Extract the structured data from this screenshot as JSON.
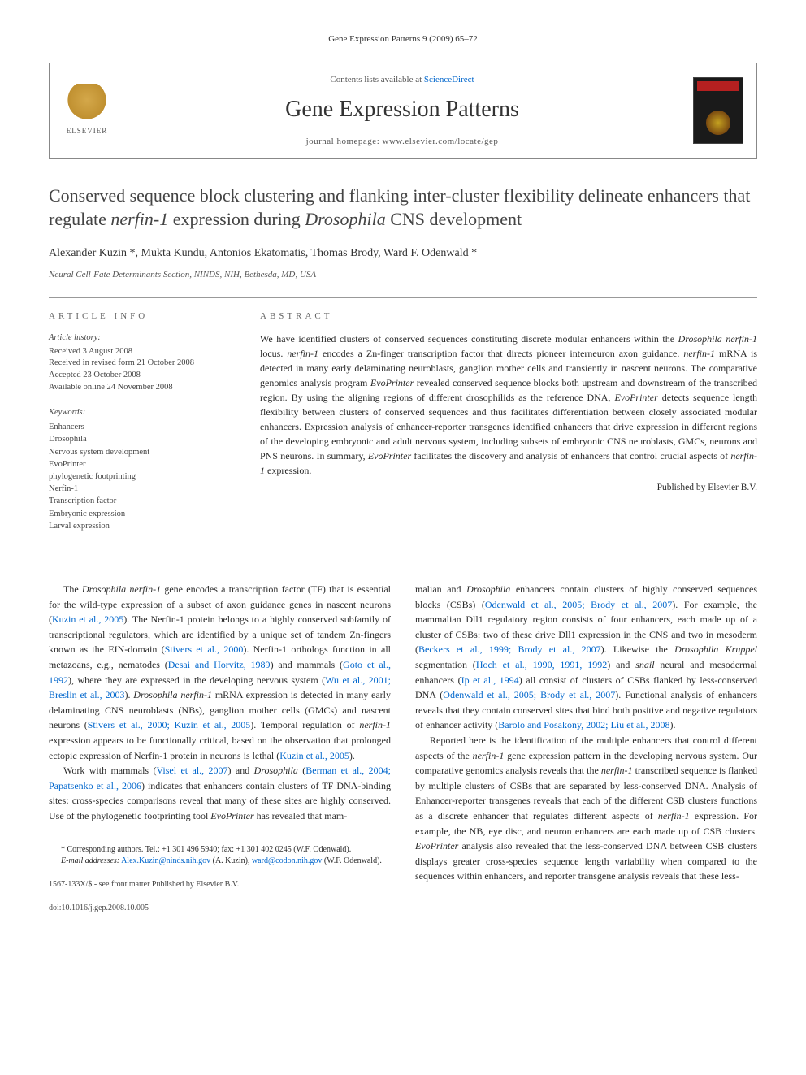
{
  "journal_ref": "Gene Expression Patterns 9 (2009) 65–72",
  "header": {
    "contents_text": "Contents lists available at ",
    "contents_link": "ScienceDirect",
    "journal_name": "Gene Expression Patterns",
    "homepage_text": "journal homepage: www.elsevier.com/locate/gep",
    "elsevier_label": "ELSEVIER"
  },
  "title_html": "Conserved sequence block clustering and flanking inter-cluster flexibility delineate enhancers that regulate <em>nerfin-1</em> expression during <em>Drosophila</em> CNS development",
  "authors": "Alexander Kuzin *, Mukta Kundu, Antonios Ekatomatis, Thomas Brody, Ward F. Odenwald *",
  "affiliation": "Neural Cell-Fate Determinants Section, NINDS, NIH, Bethesda, MD, USA",
  "info": {
    "label": "ARTICLE INFO",
    "history_label": "Article history:",
    "history": [
      "Received 3 August 2008",
      "Received in revised form 21 October 2008",
      "Accepted 23 October 2008",
      "Available online 24 November 2008"
    ],
    "keywords_label": "Keywords:",
    "keywords": [
      "Enhancers",
      "Drosophila",
      "Nervous system development",
      "EvoPrinter",
      "phylogenetic footprinting",
      "Nerfin-1",
      "Transcription factor",
      "Embryonic expression",
      "Larval expression"
    ]
  },
  "abstract": {
    "label": "ABSTRACT",
    "text_html": "We have identified clusters of conserved sequences constituting discrete modular enhancers within the <em>Drosophila nerfin-1</em> locus. <em>nerfin-1</em> encodes a Zn-finger transcription factor that directs pioneer interneuron axon guidance. <em>nerfin-1</em> mRNA is detected in many early delaminating neuroblasts, ganglion mother cells and transiently in nascent neurons. The comparative genomics analysis program <em>EvoPrinter</em> revealed conserved sequence blocks both upstream and downstream of the transcribed region. By using the aligning regions of different drosophilids as the reference DNA, <em>EvoPrinter</em> detects sequence length flexibility between clusters of conserved sequences and thus facilitates differentiation between closely associated modular enhancers. Expression analysis of enhancer-reporter transgenes identified enhancers that drive expression in different regions of the developing embryonic and adult nervous system, including subsets of embryonic CNS neuroblasts, GMCs, neurons and PNS neurons. In summary, <em>EvoPrinter</em> facilitates the discovery and analysis of enhancers that control crucial aspects of <em>nerfin-1</em> expression.",
    "published_by": "Published by Elsevier B.V."
  },
  "body": {
    "left": {
      "p1_html": "The <em>Drosophila nerfin-1</em> gene encodes a transcription factor (TF) that is essential for the wild-type expression of a subset of axon guidance genes in nascent neurons (<span class=\"cite\">Kuzin et al., 2005</span>). The Nerfin-1 protein belongs to a highly conserved subfamily of transcriptional regulators, which are identified by a unique set of tandem Zn-fingers known as the EIN-domain (<span class=\"cite\">Stivers et al., 2000</span>). Nerfin-1 orthologs function in all metazoans, e.g., nematodes (<span class=\"cite\">Desai and Horvitz, 1989</span>) and mammals (<span class=\"cite\">Goto et al., 1992</span>), where they are expressed in the developing nervous system (<span class=\"cite\">Wu et al., 2001; Breslin et al., 2003</span>). <em>Drosophila nerfin-1</em> mRNA expression is detected in many early delaminating CNS neuroblasts (NBs), ganglion mother cells (GMCs) and nascent neurons (<span class=\"cite\">Stivers et al., 2000; Kuzin et al., 2005</span>). Temporal regulation of <em>nerfin-1</em> expression appears to be functionally critical, based on the observation that prolonged ectopic expression of Nerfin-1 protein in neurons is lethal (<span class=\"cite\">Kuzin et al., 2005</span>).",
      "p2_html": "Work with mammals (<span class=\"cite\">Visel et al., 2007</span>) and <em>Drosophila</em> (<span class=\"cite\">Berman et al., 2004; Papatsenko et al., 2006</span>) indicates that enhancers contain clusters of TF DNA-binding sites: cross-species comparisons reveal that many of these sites are highly conserved. Use of the phylogenetic footprinting tool <em>EvoPrinter</em> has revealed that mam-"
    },
    "right": {
      "p1_html": "malian and <em>Drosophila</em> enhancers contain clusters of highly conserved sequences blocks (CSBs) (<span class=\"cite\">Odenwald et al., 2005; Brody et al., 2007</span>). For example, the mammalian Dll1 regulatory region consists of four enhancers, each made up of a cluster of CSBs: two of these drive Dll1 expression in the CNS and two in mesoderm (<span class=\"cite\">Beckers et al., 1999; Brody et al., 2007</span>). Likewise the <em>Drosophila Kruppel</em> segmentation (<span class=\"cite\">Hoch et al., 1990, 1991, 1992</span>) and <em>snail</em> neural and mesodermal enhancers (<span class=\"cite\">Ip et al., 1994</span>) all consist of clusters of CSBs flanked by less-conserved DNA (<span class=\"cite\">Odenwald et al., 2005; Brody et al., 2007</span>). Functional analysis of enhancers reveals that they contain conserved sites that bind both positive and negative regulators of enhancer activity (<span class=\"cite\">Barolo and Posakony, 2002; Liu et al., 2008</span>).",
      "p2_html": "Reported here is the identification of the multiple enhancers that control different aspects of the <em>nerfin-1</em> gene expression pattern in the developing nervous system. Our comparative genomics analysis reveals that the <em>nerfin-1</em> transcribed sequence is flanked by multiple clusters of CSBs that are separated by less-conserved DNA. Analysis of Enhancer-reporter transgenes reveals that each of the different CSB clusters functions as a discrete enhancer that regulates different aspects of <em>nerfin-1</em> expression. For example, the NB, eye disc, and neuron enhancers are each made up of CSB clusters. <em>EvoPrinter</em> analysis also revealed that the less-conserved DNA between CSB clusters displays greater cross-species sequence length variability when compared to the sequences within enhancers, and reporter transgene analysis reveals that these less-"
    }
  },
  "footnotes": {
    "corresponding": "* Corresponding authors. Tel.: +1 301 496 5940; fax: +1 301 402 0245 (W.F. Odenwald).",
    "email_label": "E-mail addresses:",
    "email1": "Alex.Kuzin@ninds.nih.gov",
    "email1_who": " (A. Kuzin), ",
    "email2": "ward@codon.nih.gov",
    "email2_who": " (W.F. Odenwald)."
  },
  "footer": {
    "front_matter": "1567-133X/$ - see front matter Published by Elsevier B.V.",
    "doi": "doi:10.1016/j.gep.2008.10.005"
  }
}
